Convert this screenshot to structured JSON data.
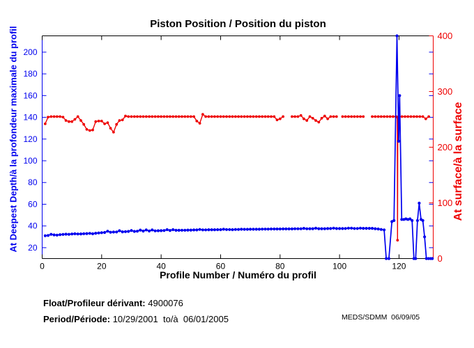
{
  "title": "Piston Position / Position du piston",
  "footer": {
    "float_label": "Float/Profileur dérivant:",
    "float_value": " 4900076",
    "period_label": "Period/Période:",
    "period_value": " 10/29/2001  to/à  06/01/2005",
    "credit": "MEDS/SDMM  06/09/05"
  },
  "colors": {
    "deep_blue": "#0000ee",
    "surface_red": "#ee0000",
    "axis_black": "#000000",
    "background": "#ffffff"
  },
  "chart_data": {
    "type": "line",
    "title": "Piston Position / Position du piston",
    "xlabel": "Profile Number / Numéro du profil",
    "ylabel_left": "At Deepest Depth/à la profondeur maximale du profil",
    "ylabel_right": "At surface/à la surface",
    "xlim": [
      0,
      131.5
    ],
    "ylim_left": [
      10,
      215
    ],
    "ylim_right": [
      0,
      400
    ],
    "xticks": [
      0,
      20,
      40,
      60,
      80,
      100,
      120
    ],
    "yticks_left": [
      20,
      40,
      60,
      80,
      100,
      120,
      140,
      160,
      180,
      200
    ],
    "yticks_right": [
      0,
      100,
      200,
      300,
      400
    ],
    "grid": false,
    "legend": "none",
    "series": [
      {
        "name": "At surface / à la surface",
        "axis": "right",
        "color": "#ee0000",
        "points": [
          [
            1,
            242
          ],
          [
            2,
            254
          ],
          [
            3,
            255
          ],
          [
            4,
            255
          ],
          [
            5,
            255
          ],
          [
            6,
            255
          ],
          [
            7,
            254
          ],
          [
            8,
            248
          ],
          [
            9,
            246
          ],
          [
            10,
            246
          ],
          [
            11,
            250
          ],
          [
            12,
            255
          ],
          [
            13,
            248
          ],
          [
            14,
            241
          ],
          [
            15,
            232
          ],
          [
            16,
            230
          ],
          [
            17,
            231
          ],
          [
            18,
            246
          ],
          [
            19,
            247
          ],
          [
            20,
            247
          ],
          [
            21,
            242
          ],
          [
            22,
            244
          ],
          [
            23,
            234
          ],
          [
            24,
            227
          ],
          [
            25,
            241
          ],
          [
            26,
            248
          ],
          [
            27,
            249
          ],
          [
            28,
            256
          ],
          [
            29,
            255
          ],
          [
            30,
            255
          ],
          [
            31,
            255
          ],
          [
            32,
            255
          ],
          [
            33,
            255
          ],
          [
            34,
            255
          ],
          [
            35,
            255
          ],
          [
            36,
            255
          ],
          [
            37,
            255
          ],
          [
            38,
            255
          ],
          [
            39,
            255
          ],
          [
            40,
            255
          ],
          [
            41,
            255
          ],
          [
            42,
            255
          ],
          [
            43,
            255
          ],
          [
            44,
            255
          ],
          [
            45,
            255
          ],
          [
            46,
            255
          ],
          [
            47,
            255
          ],
          [
            48,
            255
          ],
          [
            49,
            255
          ],
          [
            50,
            255
          ],
          [
            51,
            255
          ],
          [
            52,
            247
          ],
          [
            53,
            243
          ],
          [
            54,
            259
          ],
          [
            55,
            255
          ],
          [
            56,
            255
          ],
          [
            57,
            255
          ],
          [
            58,
            255
          ],
          [
            59,
            255
          ],
          [
            60,
            255
          ],
          [
            61,
            255
          ],
          [
            62,
            255
          ],
          [
            63,
            255
          ],
          [
            64,
            255
          ],
          [
            65,
            255
          ],
          [
            66,
            255
          ],
          [
            67,
            255
          ],
          [
            68,
            255
          ],
          [
            69,
            255
          ],
          [
            70,
            255
          ],
          [
            71,
            255
          ],
          [
            72,
            255
          ],
          [
            73,
            255
          ],
          [
            74,
            255
          ],
          [
            75,
            255
          ],
          [
            76,
            255
          ],
          [
            77,
            255
          ],
          [
            78,
            255
          ],
          [
            79,
            249
          ],
          [
            80,
            251
          ],
          [
            81,
            255
          ],
          [
            82,
            null
          ],
          [
            83,
            null
          ],
          [
            84,
            255
          ],
          [
            85,
            255
          ],
          [
            86,
            255
          ],
          [
            87,
            257
          ],
          [
            88,
            251
          ],
          [
            89,
            248
          ],
          [
            90,
            255
          ],
          [
            91,
            252
          ],
          [
            92,
            248
          ],
          [
            93,
            245
          ],
          [
            94,
            252
          ],
          [
            95,
            256
          ],
          [
            96,
            251
          ],
          [
            97,
            255
          ],
          [
            98,
            255
          ],
          [
            99,
            255
          ],
          [
            100,
            null
          ],
          [
            101,
            255
          ],
          [
            102,
            255
          ],
          [
            103,
            255
          ],
          [
            104,
            255
          ],
          [
            105,
            255
          ],
          [
            106,
            255
          ],
          [
            107,
            255
          ],
          [
            108,
            255
          ],
          [
            109,
            null
          ],
          [
            110,
            null
          ],
          [
            111,
            255
          ],
          [
            112,
            255
          ],
          [
            113,
            255
          ],
          [
            114,
            255
          ],
          [
            115,
            255
          ],
          [
            116,
            255
          ],
          [
            117,
            255
          ],
          [
            118,
            255
          ],
          [
            119,
            255
          ],
          [
            119.4,
            254
          ],
          [
            119.5,
            33
          ],
          [
            119.6,
            254
          ],
          [
            120,
            255
          ],
          [
            121,
            255
          ],
          [
            122,
            255
          ],
          [
            123,
            255
          ],
          [
            124,
            255
          ],
          [
            125,
            255
          ],
          [
            126,
            255
          ],
          [
            127,
            255
          ],
          [
            128,
            255
          ],
          [
            129,
            251
          ],
          [
            130,
            255
          ]
        ]
      },
      {
        "name": "At Deepest Depth / à la profondeur maximale du profil",
        "axis": "left",
        "color": "#0000ee",
        "points": [
          [
            1,
            31
          ],
          [
            2,
            31.3
          ],
          [
            3,
            32.3
          ],
          [
            4,
            31.8
          ],
          [
            5,
            31.6
          ],
          [
            6,
            32
          ],
          [
            7,
            32.2
          ],
          [
            8,
            32.4
          ],
          [
            9,
            32.3
          ],
          [
            10,
            32.6
          ],
          [
            11,
            32.8
          ],
          [
            12,
            32.6
          ],
          [
            13,
            32.7
          ],
          [
            14,
            32.9
          ],
          [
            15,
            33
          ],
          [
            16,
            33.2
          ],
          [
            17,
            32.8
          ],
          [
            18,
            33.3
          ],
          [
            19,
            33.6
          ],
          [
            20,
            33.8
          ],
          [
            21,
            34
          ],
          [
            22,
            35.2
          ],
          [
            23,
            34.2
          ],
          [
            24,
            34.4
          ],
          [
            25,
            34.5
          ],
          [
            26,
            35.6
          ],
          [
            27,
            34.6
          ],
          [
            28,
            34.8
          ],
          [
            29,
            35
          ],
          [
            30,
            35.8
          ],
          [
            31,
            35
          ],
          [
            32,
            35.2
          ],
          [
            33,
            36.2
          ],
          [
            34,
            35.3
          ],
          [
            35,
            36.3
          ],
          [
            36,
            35.4
          ],
          [
            37,
            36.3
          ],
          [
            38,
            35.5
          ],
          [
            39,
            35.6
          ],
          [
            40,
            35.7
          ],
          [
            41,
            35.8
          ],
          [
            42,
            36.6
          ],
          [
            43,
            35.9
          ],
          [
            44,
            36.6
          ],
          [
            45,
            36
          ],
          [
            46,
            36
          ],
          [
            47,
            36.1
          ],
          [
            48,
            36.1
          ],
          [
            49,
            36.2
          ],
          [
            50,
            36.2
          ],
          [
            51,
            36.3
          ],
          [
            52,
            36.3
          ],
          [
            53,
            36.8
          ],
          [
            54,
            36.4
          ],
          [
            55,
            36.4
          ],
          [
            56,
            36.5
          ],
          [
            57,
            36.5
          ],
          [
            58,
            36.5
          ],
          [
            59,
            36.6
          ],
          [
            60,
            36.6
          ],
          [
            61,
            37
          ],
          [
            62,
            36.7
          ],
          [
            63,
            36.7
          ],
          [
            64,
            36.6
          ],
          [
            65,
            36.8
          ],
          [
            66,
            36.8
          ],
          [
            67,
            37
          ],
          [
            68,
            36.9
          ],
          [
            69,
            36.9
          ],
          [
            70,
            37
          ],
          [
            71,
            37
          ],
          [
            72,
            37
          ],
          [
            73,
            37
          ],
          [
            74,
            37.1
          ],
          [
            75,
            37.1
          ],
          [
            76,
            37.1
          ],
          [
            77,
            37.2
          ],
          [
            78,
            37.2
          ],
          [
            79,
            37.2
          ],
          [
            80,
            37.2
          ],
          [
            81,
            37.3
          ],
          [
            82,
            37.3
          ],
          [
            83,
            37.3
          ],
          [
            84,
            37.3
          ],
          [
            85,
            37.4
          ],
          [
            86,
            37.4
          ],
          [
            87,
            37.4
          ],
          [
            88,
            37.8
          ],
          [
            89,
            37.4
          ],
          [
            90,
            37.5
          ],
          [
            91,
            37.5
          ],
          [
            92,
            37.9
          ],
          [
            93,
            37.5
          ],
          [
            94,
            37.5
          ],
          [
            95,
            37.5
          ],
          [
            96,
            37.6
          ],
          [
            97,
            37.6
          ],
          [
            98,
            38
          ],
          [
            99,
            37.6
          ],
          [
            100,
            37.6
          ],
          [
            101,
            37.6
          ],
          [
            102,
            37.7
          ],
          [
            103,
            38
          ],
          [
            104,
            38
          ],
          [
            105,
            37.7
          ],
          [
            106,
            37.7
          ],
          [
            107,
            38
          ],
          [
            108,
            37.8
          ],
          [
            109,
            37.8
          ],
          [
            110,
            37.8
          ],
          [
            111,
            37.8
          ],
          [
            112,
            37.5
          ],
          [
            113,
            37.2
          ],
          [
            114,
            36.8
          ],
          [
            115,
            36.4
          ],
          [
            115.7,
            10
          ],
          [
            116.6,
            10
          ],
          [
            117.6,
            44
          ],
          [
            118.3,
            45
          ],
          [
            119.3,
            215
          ],
          [
            119.9,
            118
          ],
          [
            120.2,
            160
          ],
          [
            120.9,
            46
          ],
          [
            121.6,
            46
          ],
          [
            122.3,
            46.5
          ],
          [
            123,
            46
          ],
          [
            123.7,
            46.5
          ],
          [
            124.4,
            45
          ],
          [
            125,
            10
          ],
          [
            125.6,
            10
          ],
          [
            126.2,
            45
          ],
          [
            126.8,
            61
          ],
          [
            127.4,
            46
          ],
          [
            128,
            45
          ],
          [
            128.6,
            30
          ],
          [
            129.2,
            10
          ],
          [
            129.9,
            10
          ],
          [
            130.6,
            10
          ],
          [
            131.2,
            10
          ]
        ]
      }
    ]
  }
}
